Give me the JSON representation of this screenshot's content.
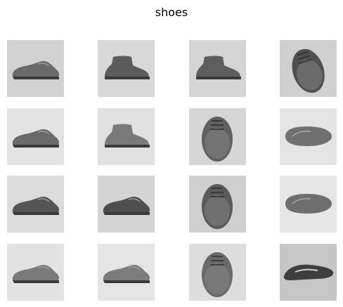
{
  "figure": {
    "title": "shoes"
  },
  "tiles": [
    {
      "row": 1,
      "col": 1,
      "subject": "shoe-side-view-icon",
      "background": "#d2d2d2",
      "shoe": "#6a6a6a"
    },
    {
      "row": 1,
      "col": 2,
      "subject": "chukka-boot-side-view-icon",
      "background": "#d8d8d8",
      "shoe": "#5c5c5c"
    },
    {
      "row": 1,
      "col": 3,
      "subject": "desert-boot-side-view-icon",
      "background": "#d5d5d5",
      "shoe": "#5e5e5e"
    },
    {
      "row": 1,
      "col": 4,
      "subject": "boot-front-view-icon",
      "background": "#d0d0d0",
      "shoe": "#505050"
    },
    {
      "row": 2,
      "col": 1,
      "subject": "oxford-shoe-side-view-icon",
      "background": "#e3e3e3",
      "shoe": "#6a6a6a"
    },
    {
      "row": 2,
      "col": 2,
      "subject": "ankle-boot-side-view-icon",
      "background": "#e1e1e1",
      "shoe": "#7a7a7a"
    },
    {
      "row": 2,
      "col": 3,
      "subject": "derby-shoe-front-view-icon",
      "background": "#d6d6d6",
      "shoe": "#606060"
    },
    {
      "row": 2,
      "col": 4,
      "subject": "loafer-top-view-icon",
      "background": "#e4e4e4",
      "shoe": "#707070"
    },
    {
      "row": 3,
      "col": 1,
      "subject": "loafer-side-view-icon",
      "background": "#dcdcdc",
      "shoe": "#555555"
    },
    {
      "row": 3,
      "col": 2,
      "subject": "penny-loafer-side-view-icon",
      "background": "#d4d4d4",
      "shoe": "#4e4e4e"
    },
    {
      "row": 3,
      "col": 3,
      "subject": "woven-loafer-front-view-icon",
      "background": "#cfcfcf",
      "shoe": "#5a5a5a"
    },
    {
      "row": 3,
      "col": 4,
      "subject": "boat-shoe-top-view-icon",
      "background": "#e6e6e6",
      "shoe": "#6e6e6e"
    },
    {
      "row": 4,
      "col": 1,
      "subject": "moccasin-side-view-icon",
      "background": "#e2e2e2",
      "shoe": "#7a7a7a"
    },
    {
      "row": 4,
      "col": 2,
      "subject": "boat-shoe-side-view-icon",
      "background": "#e5e5e5",
      "shoe": "#7c7c7c"
    },
    {
      "row": 4,
      "col": 3,
      "subject": "lace-up-moccasin-front-view-icon",
      "background": "#dddddd",
      "shoe": "#6a6a6a"
    },
    {
      "row": 4,
      "col": 4,
      "subject": "loafer-angled-view-icon",
      "background": "#c6c6c6",
      "shoe": "#3e3e3e"
    }
  ]
}
